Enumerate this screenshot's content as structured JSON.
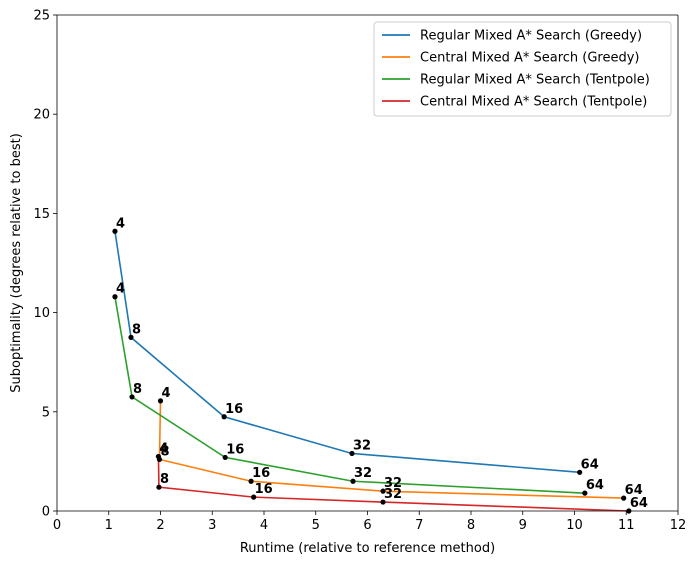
{
  "chart_data": {
    "type": "line",
    "xlabel": "Runtime (relative to reference method)",
    "ylabel": "Suboptimality (degrees relative to best)",
    "xlim": [
      0,
      12
    ],
    "ylim": [
      0,
      25
    ],
    "xticks": [
      "0",
      "1",
      "2",
      "3",
      "4",
      "5",
      "6",
      "7",
      "8",
      "9",
      "10",
      "11",
      "12"
    ],
    "yticks": [
      "0",
      "5",
      "10",
      "15",
      "20",
      "25"
    ],
    "grid": false,
    "legend_position": "top-right",
    "series": [
      {
        "name": "Regular Mixed A* Search (Greedy)",
        "color": "#1f77b4",
        "points": [
          {
            "x": 1.12,
            "y": 14.1,
            "label": "4"
          },
          {
            "x": 1.43,
            "y": 8.75,
            "label": "8"
          },
          {
            "x": 3.23,
            "y": 4.75,
            "label": "16"
          },
          {
            "x": 5.7,
            "y": 2.9,
            "label": "32"
          },
          {
            "x": 10.1,
            "y": 1.95,
            "label": "64"
          }
        ]
      },
      {
        "name": "Central Mixed A* Search (Greedy)",
        "color": "#ff7f0e",
        "points": [
          {
            "x": 2.0,
            "y": 5.55,
            "label": "4"
          },
          {
            "x": 1.98,
            "y": 2.6,
            "label": "8"
          },
          {
            "x": 3.75,
            "y": 1.5,
            "label": "16"
          },
          {
            "x": 6.3,
            "y": 1.0,
            "label": "32"
          },
          {
            "x": 10.95,
            "y": 0.65,
            "label": "64"
          }
        ]
      },
      {
        "name": "Regular Mixed A* Search (Tentpole)",
        "color": "#2ca02c",
        "points": [
          {
            "x": 1.12,
            "y": 10.8,
            "label": "4"
          },
          {
            "x": 1.45,
            "y": 5.75,
            "label": "8"
          },
          {
            "x": 3.25,
            "y": 2.7,
            "label": "16"
          },
          {
            "x": 5.72,
            "y": 1.5,
            "label": "32"
          },
          {
            "x": 10.2,
            "y": 0.9,
            "label": "64"
          }
        ]
      },
      {
        "name": "Central Mixed A* Search (Tentpole)",
        "color": "#d62728",
        "points": [
          {
            "x": 1.96,
            "y": 2.75,
            "label": "4"
          },
          {
            "x": 1.97,
            "y": 1.2,
            "label": "8"
          },
          {
            "x": 3.8,
            "y": 0.7,
            "label": "16"
          },
          {
            "x": 6.3,
            "y": 0.45,
            "label": "32"
          },
          {
            "x": 11.05,
            "y": 0.0,
            "label": "64"
          }
        ]
      }
    ]
  }
}
